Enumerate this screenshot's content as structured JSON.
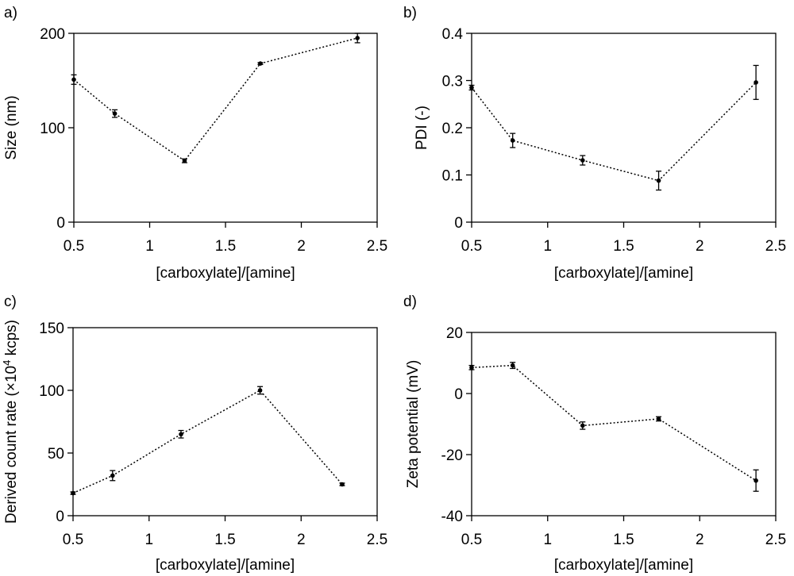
{
  "chart_data": [
    {
      "panel": "a)",
      "type": "line",
      "xlabel": "[carboxylate]/[amine]",
      "ylabel": "Size (nm)",
      "xlim": [
        0.5,
        2.5
      ],
      "ylim": [
        0,
        200
      ],
      "xticks": [
        "0.5",
        "1",
        "1.5",
        "2",
        "2.5"
      ],
      "yticks": [
        "0",
        "100",
        "200"
      ],
      "grid": false,
      "line_style": "dotted",
      "series": [
        {
          "x": [
            0.5,
            0.77,
            1.23,
            1.73,
            2.37
          ],
          "y": [
            151,
            115,
            65,
            168,
            195
          ],
          "err": [
            5,
            4,
            2,
            1,
            5
          ]
        }
      ]
    },
    {
      "panel": "b)",
      "type": "line",
      "xlabel": "[carboxylate]/[amine]",
      "ylabel": "PDI (-)",
      "xlim": [
        0.5,
        2.5
      ],
      "ylim": [
        0,
        0.4
      ],
      "xticks": [
        "0.5",
        "1",
        "1.5",
        "2",
        "2.5"
      ],
      "yticks": [
        "0",
        "0.1",
        "0.2",
        "0.3",
        "0.4"
      ],
      "grid": false,
      "line_style": "dotted",
      "series": [
        {
          "x": [
            0.5,
            0.77,
            1.23,
            1.73,
            2.37
          ],
          "y": [
            0.285,
            0.173,
            0.131,
            0.088,
            0.296
          ],
          "err": [
            0.005,
            0.015,
            0.01,
            0.02,
            0.036
          ]
        }
      ]
    },
    {
      "panel": "c)",
      "type": "line",
      "xlabel": "[carboxylate]/[amine]",
      "ylabel": "Derived count rate (×10",
      "ylabel_sup": "4",
      "ylabel_tail": " kcps)",
      "xlim": [
        0.5,
        2.5
      ],
      "ylim": [
        0,
        150
      ],
      "xticks": [
        "0.5",
        "1",
        "1.5",
        "2",
        "2.5"
      ],
      "yticks": [
        "0",
        "50",
        "100",
        "150"
      ],
      "grid": false,
      "line_style": "dotted",
      "series": [
        {
          "x": [
            0.5,
            0.76,
            1.21,
            1.73,
            2.27
          ],
          "y": [
            18,
            32,
            65,
            100,
            25
          ],
          "err": [
            1,
            4,
            3,
            3,
            1
          ]
        }
      ]
    },
    {
      "panel": "d)",
      "type": "line",
      "xlabel": "[carboxylate]/[amine]",
      "ylabel": "Zeta potential (mV)",
      "xlim": [
        0.5,
        2.5
      ],
      "ylim": [
        -40,
        20
      ],
      "xticks": [
        "0.5",
        "1",
        "1.5",
        "2",
        "2.5"
      ],
      "yticks": [
        "-40",
        "-20",
        "0",
        "20"
      ],
      "grid": false,
      "line_style": "dotted",
      "series": [
        {
          "x": [
            0.5,
            0.77,
            1.23,
            1.73,
            2.37
          ],
          "y": [
            8.5,
            9.2,
            -10.5,
            -8.3,
            -28.5
          ],
          "err": [
            0.7,
            1,
            1.2,
            0.7,
            3.5
          ]
        }
      ]
    }
  ]
}
